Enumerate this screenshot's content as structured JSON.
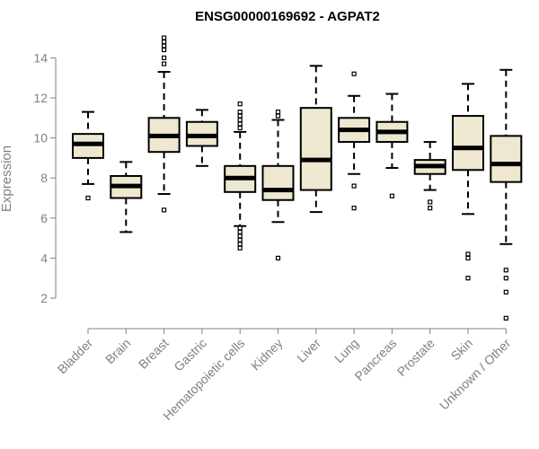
{
  "chart_data": {
    "type": "boxplot",
    "title": "ENSG00000169692 - AGPAT2",
    "ylabel": "Expression",
    "xlabel": "",
    "ylim": [
      0.5,
      15
    ],
    "yticks": [
      2,
      4,
      6,
      8,
      10,
      12,
      14
    ],
    "colors": {
      "box_fill": "#eee8d0",
      "axis": "#808080",
      "stroke": "#000000"
    },
    "categories": [
      "Bladder",
      "Brain",
      "Breast",
      "Gastric",
      "Hematopoietic cells",
      "Kidney",
      "Liver",
      "Lung",
      "Pancreas",
      "Prostate",
      "Skin",
      "Unknown / Other"
    ],
    "boxes": [
      {
        "name": "Bladder",
        "q1": 9.0,
        "median": 9.7,
        "q3": 10.2,
        "whisker_low": 7.7,
        "whisker_high": 11.3,
        "outliers": [
          7.0
        ]
      },
      {
        "name": "Brain",
        "q1": 7.0,
        "median": 7.6,
        "q3": 8.1,
        "whisker_low": 5.3,
        "whisker_high": 8.8,
        "outliers": []
      },
      {
        "name": "Breast",
        "q1": 9.3,
        "median": 10.1,
        "q3": 11.0,
        "whisker_low": 7.2,
        "whisker_high": 13.3,
        "outliers": [
          6.4,
          13.7,
          14.0,
          14.4,
          14.6,
          14.8,
          15.0
        ]
      },
      {
        "name": "Gastric",
        "q1": 9.6,
        "median": 10.1,
        "q3": 10.8,
        "whisker_low": 8.6,
        "whisker_high": 11.4,
        "outliers": []
      },
      {
        "name": "Hematopoietic cells",
        "q1": 7.3,
        "median": 8.0,
        "q3": 8.6,
        "whisker_low": 5.6,
        "whisker_high": 10.3,
        "outliers": [
          4.5,
          4.7,
          4.9,
          5.1,
          5.3,
          5.5,
          10.5,
          10.7,
          10.9,
          11.1,
          11.3,
          11.7
        ]
      },
      {
        "name": "Kidney",
        "q1": 6.9,
        "median": 7.4,
        "q3": 8.6,
        "whisker_low": 5.8,
        "whisker_high": 10.9,
        "outliers": [
          4.0,
          11.1,
          11.3
        ]
      },
      {
        "name": "Liver",
        "q1": 7.4,
        "median": 8.9,
        "q3": 11.5,
        "whisker_low": 6.3,
        "whisker_high": 13.6,
        "outliers": []
      },
      {
        "name": "Lung",
        "q1": 9.8,
        "median": 10.4,
        "q3": 11.0,
        "whisker_low": 8.2,
        "whisker_high": 12.1,
        "outliers": [
          6.5,
          7.6,
          13.2
        ]
      },
      {
        "name": "Pancreas",
        "q1": 9.8,
        "median": 10.3,
        "q3": 10.8,
        "whisker_low": 8.5,
        "whisker_high": 12.2,
        "outliers": [
          7.1
        ]
      },
      {
        "name": "Prostate",
        "q1": 8.2,
        "median": 8.6,
        "q3": 8.9,
        "whisker_low": 7.4,
        "whisker_high": 9.8,
        "outliers": [
          6.5,
          6.8
        ]
      },
      {
        "name": "Skin",
        "q1": 8.4,
        "median": 9.5,
        "q3": 11.1,
        "whisker_low": 6.2,
        "whisker_high": 12.7,
        "outliers": [
          3.0,
          4.0,
          4.2
        ]
      },
      {
        "name": "Unknown / Other",
        "q1": 7.8,
        "median": 8.7,
        "q3": 10.1,
        "whisker_low": 4.7,
        "whisker_high": 13.4,
        "outliers": [
          1.0,
          2.3,
          3.0,
          3.4
        ]
      }
    ]
  }
}
